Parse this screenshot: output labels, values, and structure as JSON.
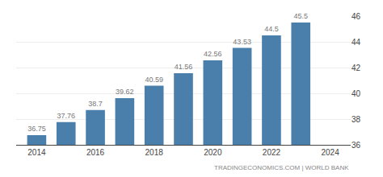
{
  "chart_data": {
    "type": "bar",
    "x": [
      2014,
      2015,
      2016,
      2017,
      2018,
      2019,
      2020,
      2021,
      2022,
      2023
    ],
    "values": [
      36.75,
      37.76,
      38.7,
      39.62,
      40.59,
      41.56,
      42.56,
      43.53,
      44.5,
      45.5
    ],
    "color": "#4a7eab",
    "xlim": [
      2013.3,
      2024.7
    ],
    "xticks": [
      2014,
      2016,
      2018,
      2020,
      2022,
      2024
    ],
    "ylim": [
      36,
      46
    ],
    "yticks": [
      36,
      38,
      40,
      42,
      44,
      46
    ],
    "grid": true,
    "data_labels": true,
    "annotations": [
      "TRADINGECONOMICS.COM | WORLD BANK"
    ]
  }
}
